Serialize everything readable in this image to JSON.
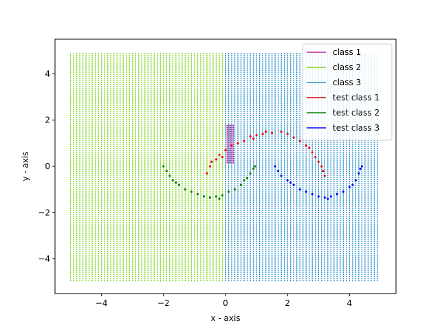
{
  "chart_data": {
    "type": "scatter",
    "title": "",
    "xlabel": "x - axis",
    "ylabel": "y - axis",
    "xlim": [
      -5.5,
      5.5
    ],
    "ylim": [
      -5.5,
      5.5
    ],
    "xticks": [
      -4,
      -2,
      0,
      2,
      4
    ],
    "yticks": [
      -4,
      -2,
      0,
      2,
      4
    ],
    "grid": false,
    "legend_position": "top-right",
    "decision_regions": [
      {
        "name": "class 1",
        "color": "#b5249b",
        "x_range": [
          0.05,
          0.25
        ],
        "y_range": [
          0.1,
          1.8
        ]
      },
      {
        "name": "class 2",
        "color": "#7ed321",
        "x_range": [
          -5.0,
          0.0
        ],
        "y_range": [
          -5.0,
          4.9
        ]
      },
      {
        "name": "class 3",
        "color": "#2a8ec8",
        "x_range": [
          0.0,
          4.95
        ],
        "y_range": [
          -5.0,
          4.9
        ]
      }
    ],
    "series": [
      {
        "name": "class 1",
        "color": "#b5249b",
        "kind": "line"
      },
      {
        "name": "class 2",
        "color": "#7ed321",
        "kind": "line"
      },
      {
        "name": "class 3",
        "color": "#2a8ec8",
        "kind": "line"
      },
      {
        "name": "test class 1",
        "color": "#e8000b",
        "kind": "points",
        "points": [
          [
            -0.6,
            -0.3
          ],
          [
            -0.5,
            0.0
          ],
          [
            -0.45,
            0.2
          ],
          [
            -0.3,
            0.3
          ],
          [
            -0.2,
            0.5
          ],
          [
            0.0,
            0.7
          ],
          [
            0.2,
            0.9
          ],
          [
            0.4,
            1.0
          ],
          [
            0.6,
            1.1
          ],
          [
            0.8,
            1.3
          ],
          [
            1.0,
            1.35
          ],
          [
            1.2,
            1.4
          ],
          [
            1.5,
            1.45
          ],
          [
            1.8,
            1.5
          ],
          [
            2.0,
            1.4
          ],
          [
            2.2,
            1.25
          ],
          [
            2.4,
            1.1
          ],
          [
            2.6,
            0.9
          ],
          [
            2.8,
            0.6
          ],
          [
            2.9,
            0.4
          ],
          [
            3.0,
            0.2
          ],
          [
            3.1,
            0.0
          ],
          [
            3.15,
            -0.2
          ],
          [
            3.2,
            -0.4
          ],
          [
            2.7,
            0.8
          ],
          [
            1.3,
            1.5
          ],
          [
            0.9,
            1.2
          ],
          [
            -0.1,
            0.4
          ]
        ]
      },
      {
        "name": "test class 2",
        "color": "#008000",
        "kind": "points",
        "points": [
          [
            -2.0,
            0.0
          ],
          [
            -1.9,
            -0.2
          ],
          [
            -1.8,
            -0.4
          ],
          [
            -1.7,
            -0.6
          ],
          [
            -1.5,
            -0.8
          ],
          [
            -1.3,
            -1.0
          ],
          [
            -1.1,
            -1.1
          ],
          [
            -0.9,
            -1.2
          ],
          [
            -0.7,
            -1.3
          ],
          [
            -0.5,
            -1.35
          ],
          [
            -0.3,
            -1.3
          ],
          [
            -0.1,
            -1.25
          ],
          [
            0.1,
            -1.1
          ],
          [
            0.3,
            -1.0
          ],
          [
            0.5,
            -0.8
          ],
          [
            0.7,
            -0.5
          ],
          [
            0.8,
            -0.3
          ],
          [
            0.9,
            -0.1
          ],
          [
            0.95,
            0.0
          ],
          [
            -1.6,
            -0.7
          ],
          [
            -0.2,
            -1.4
          ],
          [
            0.6,
            -0.6
          ]
        ]
      },
      {
        "name": "test class 3",
        "color": "#0000ff",
        "kind": "points",
        "points": [
          [
            1.6,
            0.0
          ],
          [
            1.7,
            -0.2
          ],
          [
            1.8,
            -0.4
          ],
          [
            2.0,
            -0.6
          ],
          [
            2.2,
            -0.8
          ],
          [
            2.4,
            -1.0
          ],
          [
            2.6,
            -1.1
          ],
          [
            2.8,
            -1.2
          ],
          [
            3.0,
            -1.3
          ],
          [
            3.2,
            -1.35
          ],
          [
            3.4,
            -1.3
          ],
          [
            3.6,
            -1.2
          ],
          [
            3.8,
            -1.1
          ],
          [
            4.0,
            -0.9
          ],
          [
            4.2,
            -0.6
          ],
          [
            4.3,
            -0.3
          ],
          [
            4.35,
            -0.1
          ],
          [
            4.4,
            0.0
          ],
          [
            2.1,
            -0.7
          ],
          [
            3.3,
            -1.4
          ],
          [
            4.1,
            -0.8
          ]
        ]
      }
    ]
  }
}
